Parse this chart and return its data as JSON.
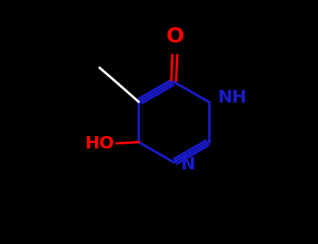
{
  "bg": "#000000",
  "ring_color": "#1a1acd",
  "white": "#ffffff",
  "red": "#ff0000",
  "figsize": [
    4.55,
    3.5
  ],
  "dpi": 100,
  "lw": 2.5,
  "NH_label": "NH",
  "N_label": "N",
  "O_label": "O",
  "HO_label": "HO",
  "fontsize_label": 18,
  "fontsize_O": 22
}
